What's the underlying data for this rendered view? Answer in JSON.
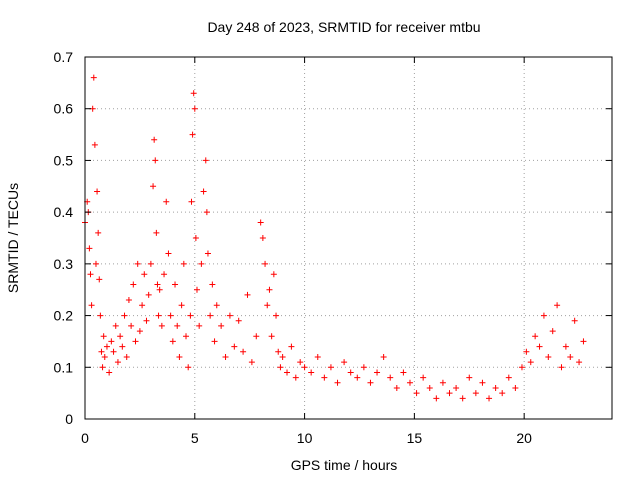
{
  "chart_data": {
    "type": "scatter",
    "title": "Day 248 of 2023, SRMTID for receiver mtbu",
    "xlabel": "GPS time / hours",
    "ylabel": "SRMTID / TECUs",
    "xlim": [
      0,
      24
    ],
    "ylim": [
      0,
      0.7
    ],
    "xticks": [
      0,
      5,
      10,
      15,
      20
    ],
    "yticks": [
      0,
      0.1,
      0.2,
      0.3,
      0.4,
      0.5,
      0.6,
      0.7
    ],
    "xtick_labels": [
      "0",
      "5",
      "10",
      "15",
      "20"
    ],
    "ytick_labels": [
      "0",
      "0.1",
      "0.2",
      "0.3",
      "0.4",
      "0.5",
      "0.6",
      "0.7"
    ],
    "grid": true,
    "marker": "+",
    "marker_color": "#ff0000",
    "series": [
      {
        "name": "SRMTID",
        "x": [
          0.0,
          0.1,
          0.15,
          0.2,
          0.25,
          0.3,
          0.35,
          0.4,
          0.45,
          0.5,
          0.55,
          0.6,
          0.65,
          0.7,
          0.75,
          0.8,
          0.85,
          0.9,
          1.0,
          1.1,
          1.2,
          1.3,
          1.4,
          1.5,
          1.6,
          1.7,
          1.8,
          1.9,
          2.0,
          2.1,
          2.2,
          2.3,
          2.4,
          2.5,
          2.6,
          2.7,
          2.8,
          2.9,
          3.0,
          3.1,
          3.15,
          3.2,
          3.25,
          3.3,
          3.35,
          3.4,
          3.5,
          3.6,
          3.7,
          3.8,
          3.9,
          4.0,
          4.1,
          4.2,
          4.3,
          4.4,
          4.5,
          4.6,
          4.7,
          4.8,
          4.85,
          4.9,
          4.95,
          5.0,
          5.05,
          5.1,
          5.2,
          5.3,
          5.4,
          5.5,
          5.55,
          5.6,
          5.7,
          5.8,
          5.9,
          6.0,
          6.2,
          6.4,
          6.6,
          6.8,
          7.0,
          7.2,
          7.4,
          7.6,
          7.8,
          8.0,
          8.1,
          8.2,
          8.3,
          8.4,
          8.5,
          8.6,
          8.7,
          8.8,
          8.9,
          9.0,
          9.2,
          9.4,
          9.6,
          9.8,
          10.0,
          10.3,
          10.6,
          10.9,
          11.2,
          11.5,
          11.8,
          12.1,
          12.4,
          12.7,
          13.0,
          13.3,
          13.6,
          13.9,
          14.2,
          14.5,
          14.8,
          15.1,
          15.4,
          15.7,
          16.0,
          16.3,
          16.6,
          16.9,
          17.2,
          17.5,
          17.8,
          18.1,
          18.4,
          18.7,
          19.0,
          19.3,
          19.6,
          19.9,
          20.1,
          20.3,
          20.5,
          20.7,
          20.9,
          21.1,
          21.3,
          21.5,
          21.7,
          21.9,
          22.1,
          22.3,
          22.5,
          22.7
        ],
        "y": [
          0.38,
          0.42,
          0.4,
          0.33,
          0.28,
          0.22,
          0.6,
          0.66,
          0.53,
          0.3,
          0.44,
          0.36,
          0.27,
          0.2,
          0.13,
          0.1,
          0.16,
          0.12,
          0.14,
          0.09,
          0.15,
          0.13,
          0.18,
          0.11,
          0.16,
          0.14,
          0.2,
          0.12,
          0.23,
          0.18,
          0.26,
          0.15,
          0.3,
          0.17,
          0.22,
          0.28,
          0.19,
          0.24,
          0.3,
          0.45,
          0.54,
          0.5,
          0.36,
          0.26,
          0.2,
          0.25,
          0.18,
          0.28,
          0.42,
          0.32,
          0.2,
          0.15,
          0.26,
          0.18,
          0.12,
          0.22,
          0.3,
          0.16,
          0.1,
          0.2,
          0.42,
          0.55,
          0.63,
          0.6,
          0.35,
          0.25,
          0.18,
          0.3,
          0.44,
          0.5,
          0.4,
          0.32,
          0.2,
          0.26,
          0.15,
          0.22,
          0.18,
          0.12,
          0.2,
          0.14,
          0.19,
          0.13,
          0.24,
          0.11,
          0.16,
          0.38,
          0.35,
          0.3,
          0.22,
          0.25,
          0.16,
          0.28,
          0.2,
          0.13,
          0.1,
          0.12,
          0.09,
          0.14,
          0.08,
          0.11,
          0.1,
          0.09,
          0.12,
          0.08,
          0.1,
          0.07,
          0.11,
          0.09,
          0.08,
          0.1,
          0.07,
          0.09,
          0.12,
          0.08,
          0.06,
          0.09,
          0.07,
          0.05,
          0.08,
          0.06,
          0.04,
          0.07,
          0.05,
          0.06,
          0.04,
          0.08,
          0.05,
          0.07,
          0.04,
          0.06,
          0.05,
          0.08,
          0.06,
          0.1,
          0.13,
          0.11,
          0.16,
          0.14,
          0.2,
          0.12,
          0.17,
          0.22,
          0.1,
          0.14,
          0.12,
          0.19,
          0.11,
          0.15
        ]
      }
    ]
  }
}
